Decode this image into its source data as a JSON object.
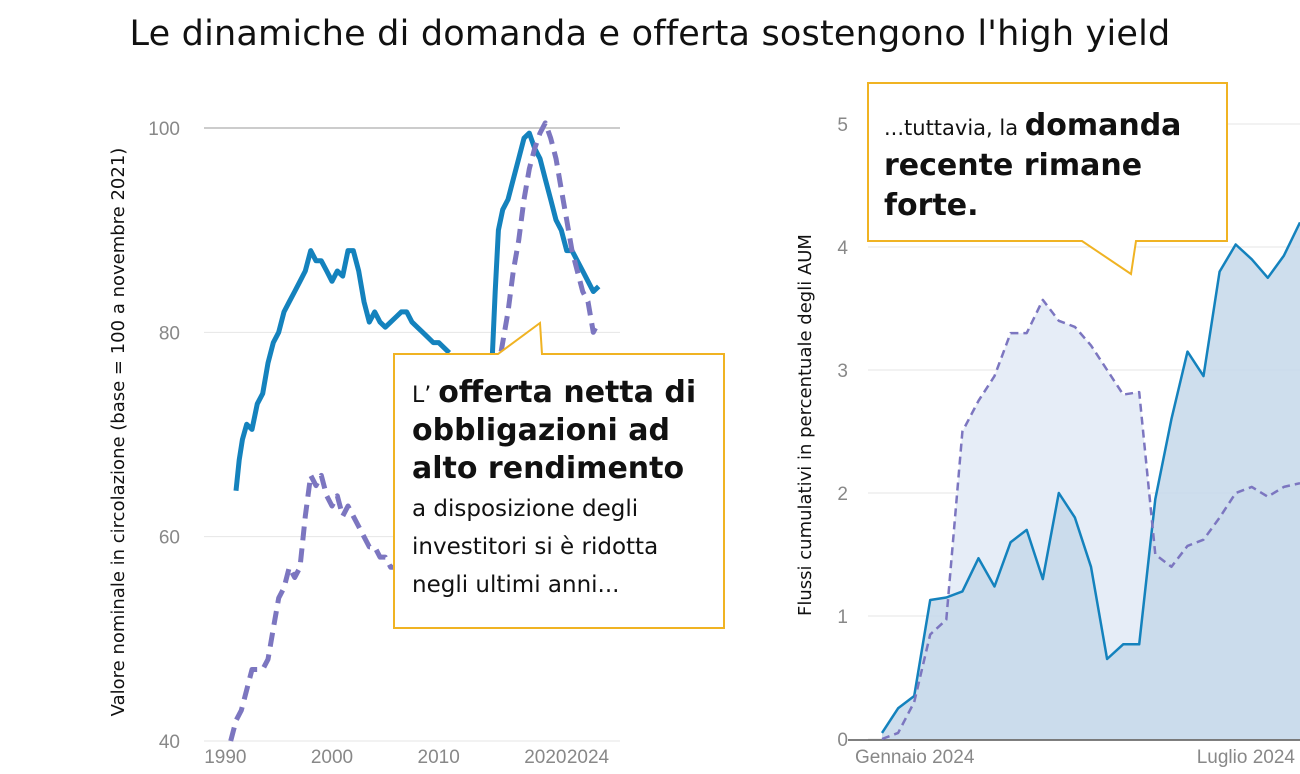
{
  "title": "Le dinamiche di domanda e offerta sostengono l'high yield",
  "colors": {
    "solid": "#1482bd",
    "dashed": "#7c76c0",
    "callout_border": "#f0b323",
    "fill_solid": "#c6d8ea",
    "fill_dashed": "#e6edf7",
    "grid": "#e6e6e6",
    "refline": "#bbbbbb"
  },
  "callouts": {
    "left": {
      "lead": "L’ ",
      "bold": "offerta netta di obbligazioni ad alto rendimento",
      "rest": "a disposizione degli investitori si è ridotta negli ultimi anni..."
    },
    "right": {
      "lead": "...tuttavia, la ",
      "bold": "domanda recente rimane forte."
    }
  },
  "chart_data": [
    {
      "type": "line",
      "ylabel": "Valore nominale in circolazione (base = 100 a novembre 2021)",
      "xlabel": "",
      "xlim": [
        1988,
        2027
      ],
      "ylim": [
        40,
        100
      ],
      "xticks": [
        "1990",
        "2000",
        "2010",
        "2020",
        "2024"
      ],
      "xtick_values": [
        1990,
        2000,
        2010,
        2020,
        2024
      ],
      "yticks": [
        40,
        60,
        80,
        100
      ],
      "reference_line": 100,
      "series": [
        {
          "style": "solid",
          "x": [
            1991,
            1991.3,
            1991.6,
            1992,
            1992.5,
            1993,
            1993.5,
            1994,
            1994.5,
            1995,
            1995.5,
            1996,
            1996.5,
            1997,
            1997.5,
            1998,
            1998.5,
            1999,
            1999.5,
            2000,
            2000.5,
            2001,
            2001.5,
            2002,
            2002.5,
            2003,
            2003.5,
            2004,
            2004.5,
            2005,
            2005.5,
            2006,
            2006.5,
            2007,
            2007.5,
            2008,
            2008.5,
            2009,
            2009.5,
            2010,
            2010.5,
            2011
          ],
          "values": [
            64.5,
            67.5,
            69.5,
            71,
            70.5,
            73,
            74,
            77,
            79,
            80,
            82,
            83,
            84,
            85,
            86,
            88,
            87,
            87,
            86,
            85,
            86,
            85.5,
            88,
            88,
            86,
            83,
            81,
            82,
            81,
            80.5,
            81,
            81.5,
            82,
            82,
            81,
            80.5,
            80,
            79.5,
            79,
            79,
            78.5,
            78
          ]
        },
        {
          "style": "solid",
          "x": [
            2015,
            2015.3,
            2015.6,
            2016,
            2016.5,
            2017,
            2017.5,
            2018,
            2018.5,
            2019,
            2019.5,
            2020,
            2020.5,
            2021,
            2021.5,
            2022,
            2022.5,
            2023,
            2023.5,
            2024,
            2024.5,
            2025
          ],
          "values": [
            77,
            84,
            90,
            92,
            93,
            95,
            97,
            99,
            99.5,
            98,
            97,
            95,
            93,
            91,
            90,
            88,
            88,
            87,
            86,
            85,
            84,
            84.5
          ]
        },
        {
          "style": "dashed",
          "x": [
            1990.5,
            1991,
            1991.5,
            1992,
            1992.5,
            1993,
            1993.5,
            1994,
            1994.5,
            1995,
            1995.5,
            1996,
            1996.5,
            1997,
            1997.5,
            1998,
            1998.5,
            1999,
            1999.5,
            2000,
            2000.5,
            2001,
            2001.5,
            2002,
            2002.5,
            2003,
            2003.5,
            2004,
            2004.5,
            2005,
            2005.5,
            2006
          ],
          "values": [
            40,
            42,
            43,
            45,
            47,
            47,
            47,
            48,
            51,
            54,
            55,
            57,
            56,
            57,
            62,
            66,
            65,
            66,
            64,
            63,
            64,
            62,
            63,
            62,
            61,
            60,
            59,
            59,
            58,
            58,
            57,
            57
          ]
        },
        {
          "style": "dashed",
          "x": [
            2015.5,
            2016,
            2016.5,
            2017,
            2017.5,
            2018,
            2018.5,
            2019,
            2019.5,
            2020,
            2020.5,
            2021,
            2021.5,
            2022,
            2022.5,
            2023,
            2023.5,
            2024,
            2024.5,
            2025
          ],
          "values": [
            76,
            79,
            82,
            86,
            89,
            93,
            96,
            98,
            99.5,
            100.5,
            99,
            97,
            94,
            91,
            88,
            86,
            84,
            83,
            80,
            81
          ]
        }
      ]
    },
    {
      "type": "area",
      "ylabel": "Flussi cumulativi in percentuale degli AUM",
      "xlabel": "",
      "xticks": [
        "Gennaio 2024",
        "Luglio 2024"
      ],
      "ylim": [
        0,
        5
      ],
      "yticks": [
        0,
        1,
        2,
        3,
        4,
        5
      ],
      "series": [
        {
          "style": "solid",
          "values": [
            0.05,
            0.25,
            0.35,
            1.13,
            1.15,
            1.2,
            1.47,
            1.24,
            1.6,
            1.7,
            1.3,
            2.0,
            1.8,
            1.4,
            0.65,
            0.77,
            0.77,
            1.95,
            2.6,
            3.15,
            2.95,
            3.8,
            4.02,
            3.9,
            3.75,
            3.93,
            4.2
          ]
        },
        {
          "style": "dashed",
          "values": [
            0.0,
            0.05,
            0.3,
            0.85,
            0.97,
            2.5,
            2.75,
            2.95,
            3.3,
            3.3,
            3.57,
            3.4,
            3.35,
            3.2,
            3.0,
            2.8,
            2.82,
            1.5,
            1.4,
            1.57,
            1.62,
            1.8,
            2.0,
            2.05,
            1.97,
            2.05,
            2.08
          ]
        }
      ]
    }
  ]
}
